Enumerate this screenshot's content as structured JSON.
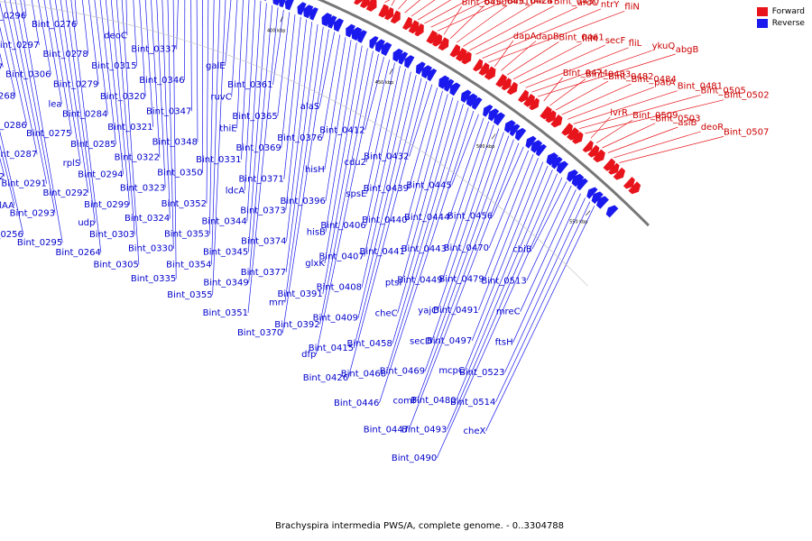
{
  "caption": "Brachyspira intermedia PWS/A, complete genome. - 0..3304788",
  "legend": [
    {
      "label": "Forward",
      "color": "#e8141b"
    },
    {
      "label": "Reverse",
      "color": "#1a1aee"
    }
  ],
  "ticks": [
    "100 kbp",
    "150 kbp",
    "200 kbp",
    "250 kbp",
    "300 kbp",
    "350 kbp",
    "400 kbp",
    "450 kbp",
    "500 kbp",
    "550 kbp"
  ],
  "forward_labels": [
    "Bint_0102",
    "Bint_0101",
    "hvp45",
    "Bint_0125",
    "lys",
    "Bint_0123",
    "tdh",
    "Bint_0148",
    "ddl",
    "Bint_0156",
    "Bint_0155",
    "Bint_0165",
    "lon",
    "Bint_0175",
    "Bint_0174",
    "creD",
    "yjmC",
    "cheD2",
    "Bint_0199",
    "Bint_0197",
    "Bint_0188",
    "Bint_0187",
    "Bint_0195",
    "Bint_0200",
    "recJ",
    "Bint_0238",
    "Bint_0237",
    "Bint_0235",
    "Bint_0234",
    "Bint_0229",
    "Bint_0228",
    "Bint_0217",
    "Bint_0216",
    "Bint_0214",
    "serS",
    "Bint_0236",
    "Bint_0218",
    "Bint_0232",
    "Bint_0249",
    "elaC",
    "ftsQ",
    "metG",
    "Bint_0283",
    "Bint_0282",
    "Bint_0281",
    "Bint_0280",
    "Bint_0272",
    "ispD",
    "Bint_0289",
    "Bint_0270",
    "Bint_0269",
    "Bint_0265",
    "Bint_0263",
    "Bint_0273",
    "Bint_0288",
    "Bint_0290",
    "fruK",
    "Bint_0316",
    "Bint_0313",
    "jag",
    "Bint_0317",
    "Bint_0307",
    "Bint_0304",
    "Bint_0309",
    "Bint_0308",
    "Bint_0318",
    "Bint_0319",
    "Bint_0328",
    "Bint_0327",
    "Bint_0326",
    "Bint_0332",
    "Bint_0334",
    "Bint_0329",
    "Bint_0342",
    "Bint_0341",
    "Bint_0340",
    "Bint_0339",
    "Bint_0338",
    "hemK",
    "Bint_0357",
    "Bint_0358",
    "Bint_0363",
    "Bint_0364",
    "fabH",
    "Bint_0366",
    "Bint_0343",
    "Bint_0362",
    "Bint_0359",
    "Bint_0378",
    "Bint_0379",
    "Bint_0380",
    "Bint_0381",
    "Bint_0386",
    "Bint_0388",
    "purN",
    "purM",
    "Bint_0401",
    "Bint_0397",
    "Bint_0395",
    "fumA",
    "Bint_0403",
    "flaB3",
    "Bint_0402",
    "Bint_0383",
    "infB",
    "Bint_0368",
    "nuoG",
    "vspC",
    "Bint_0375",
    "Bint_0399",
    "Bint_0389",
    "Bint_0398",
    "Bint_0411",
    "Bint_0410",
    "Bint_0418",
    "Bint_0422",
    "flgE",
    "Bint_0419",
    "Bint_0423",
    "Bint_0420",
    "motA",
    "motB",
    "Bint_0425",
    "Bint_0427",
    "Bint_0428",
    "Bint_0429",
    "hlyC",
    "Bint_0434",
    "Bint_0450",
    "Bint_0451",
    "Bint_0424",
    "pncB",
    "Bint_0430",
    "aroC",
    "ntrY",
    "fliN",
    "dapA",
    "dapB",
    "Bint_0461",
    "fliM",
    "secF",
    "fliL",
    "ykuQ",
    "abgB",
    "Bint_0474",
    "Bint_0483",
    "Bint_0482",
    "Bint_0484",
    "patA",
    "Bint_0481",
    "Bint_0505",
    "Bint_0502",
    "lvrR",
    "Bint_0509",
    "Bint_0503",
    "aslB",
    "deoR",
    "Bint_0507"
  ],
  "reverse_labels": [
    "Bint_0122",
    "Bint_0116",
    "Bint_0117",
    "Bint_0118",
    "treP",
    "Bint_0120",
    "Bint_0121",
    "Bint_0149",
    "Bint_0151",
    "Bint_0152",
    "Bint_0158",
    "fadD",
    "Bint_0160",
    "Bint_0162",
    "Bint_0163",
    "recX",
    "Bint_0167",
    "Bint_0168",
    "Bint_0173",
    "ruvB",
    "asd",
    "tdk",
    "Bint_0182",
    "gidA",
    "Bint_0184",
    "scpB",
    "mraY",
    "Bint_0186",
    "Bint_0191",
    "Bint_0192",
    "Bint_0194",
    "Bint_0196",
    "Bint_0204",
    "Bint_0198",
    "Bint_0201",
    "Bint_0205",
    "Bint_0206",
    "Bint_0207",
    "Bint_0208",
    "Bint_0209",
    "Bint_0210",
    "Bint_0211",
    "Bint_0212",
    "Bint_0215",
    "Bint_0221",
    "Bint_0224",
    "Bint_0226",
    "Bint_0231",
    "Bint_0233",
    "Bint_0239",
    "Bint_0242",
    "Bint_0222",
    "Bint_0213",
    "Bint_0219",
    "Bint_0220",
    "Bint_0223",
    "vspF",
    "vspE",
    "fab",
    "rarD",
    "Bint_0259",
    "adh",
    "Bint_0254",
    "Bint_0251",
    "mdh",
    "Bint_0261",
    "Bint_0241",
    "Bint_0247",
    "Bint_0250",
    "Bint_0252",
    "spollAA",
    "Bint_0256",
    "Bint_0262",
    "Bint_0266",
    "Bint_0267",
    "Bint_0268",
    "Bint_0286",
    "Bint_0287",
    "Bint_0291",
    "Bint_0293",
    "Bint_0295",
    "Bint_0296",
    "Bint_0297",
    "Bint_0306",
    "lea",
    "Bint_0275",
    "rplS",
    "Bint_0292",
    "udp",
    "Bint_0264",
    "Bint_0276",
    "Bint_0278",
    "Bint_0279",
    "Bint_0284",
    "Bint_0285",
    "Bint_0294",
    "Bint_0299",
    "Bint_0303",
    "Bint_0305",
    "deoC",
    "Bint_0315",
    "Bint_0320",
    "Bint_0321",
    "Bint_0322",
    "Bint_0323",
    "Bint_0324",
    "Bint_0330",
    "Bint_0335",
    "Bint_0337",
    "Bint_0346",
    "Bint_0347",
    "Bint_0348",
    "Bint_0350",
    "Bint_0352",
    "Bint_0353",
    "Bint_0354",
    "Bint_0355",
    "galE",
    "ruvC",
    "thiE",
    "Bint_0331",
    "ldcA",
    "Bint_0344",
    "Bint_0345",
    "Bint_0349",
    "Bint_0351",
    "Bint_0361",
    "Bint_0365",
    "Bint_0369",
    "Bint_0371",
    "Bint_0373",
    "Bint_0374",
    "Bint_0377",
    "mrr",
    "Bint_0370",
    "alaS",
    "Bint_0376",
    "hisH",
    "Bint_0396",
    "hisB",
    "glxK",
    "Bint_0391",
    "Bint_0392",
    "dfp",
    "Bint_0412",
    "cdu2",
    "spsE",
    "Bint_0406",
    "Bint_0407",
    "Bint_0408",
    "Bint_0409",
    "Bint_0415",
    "Bint_0426",
    "Bint_0432",
    "Bint_0439",
    "Bint_0440",
    "Bint_0441",
    "ptsI",
    "cheC",
    "Bint_0458",
    "Bint_0468",
    "Bint_0446",
    "Bint_0445",
    "Bint_0444",
    "Bint_0443",
    "Bint_0449",
    "yajC",
    "secD",
    "Bint_0469",
    "comF",
    "Bint_0447",
    "Bint_0456",
    "Bint_0470",
    "Bint_0479",
    "Bint_0491",
    "Bint_0497",
    "mcpC",
    "Bint_0480",
    "Bint_0493",
    "Bint_0490",
    "cbiB",
    "Bint_0513",
    "mreC",
    "ftsH",
    "Bint_0523",
    "Bint_0514",
    "cheX"
  ]
}
